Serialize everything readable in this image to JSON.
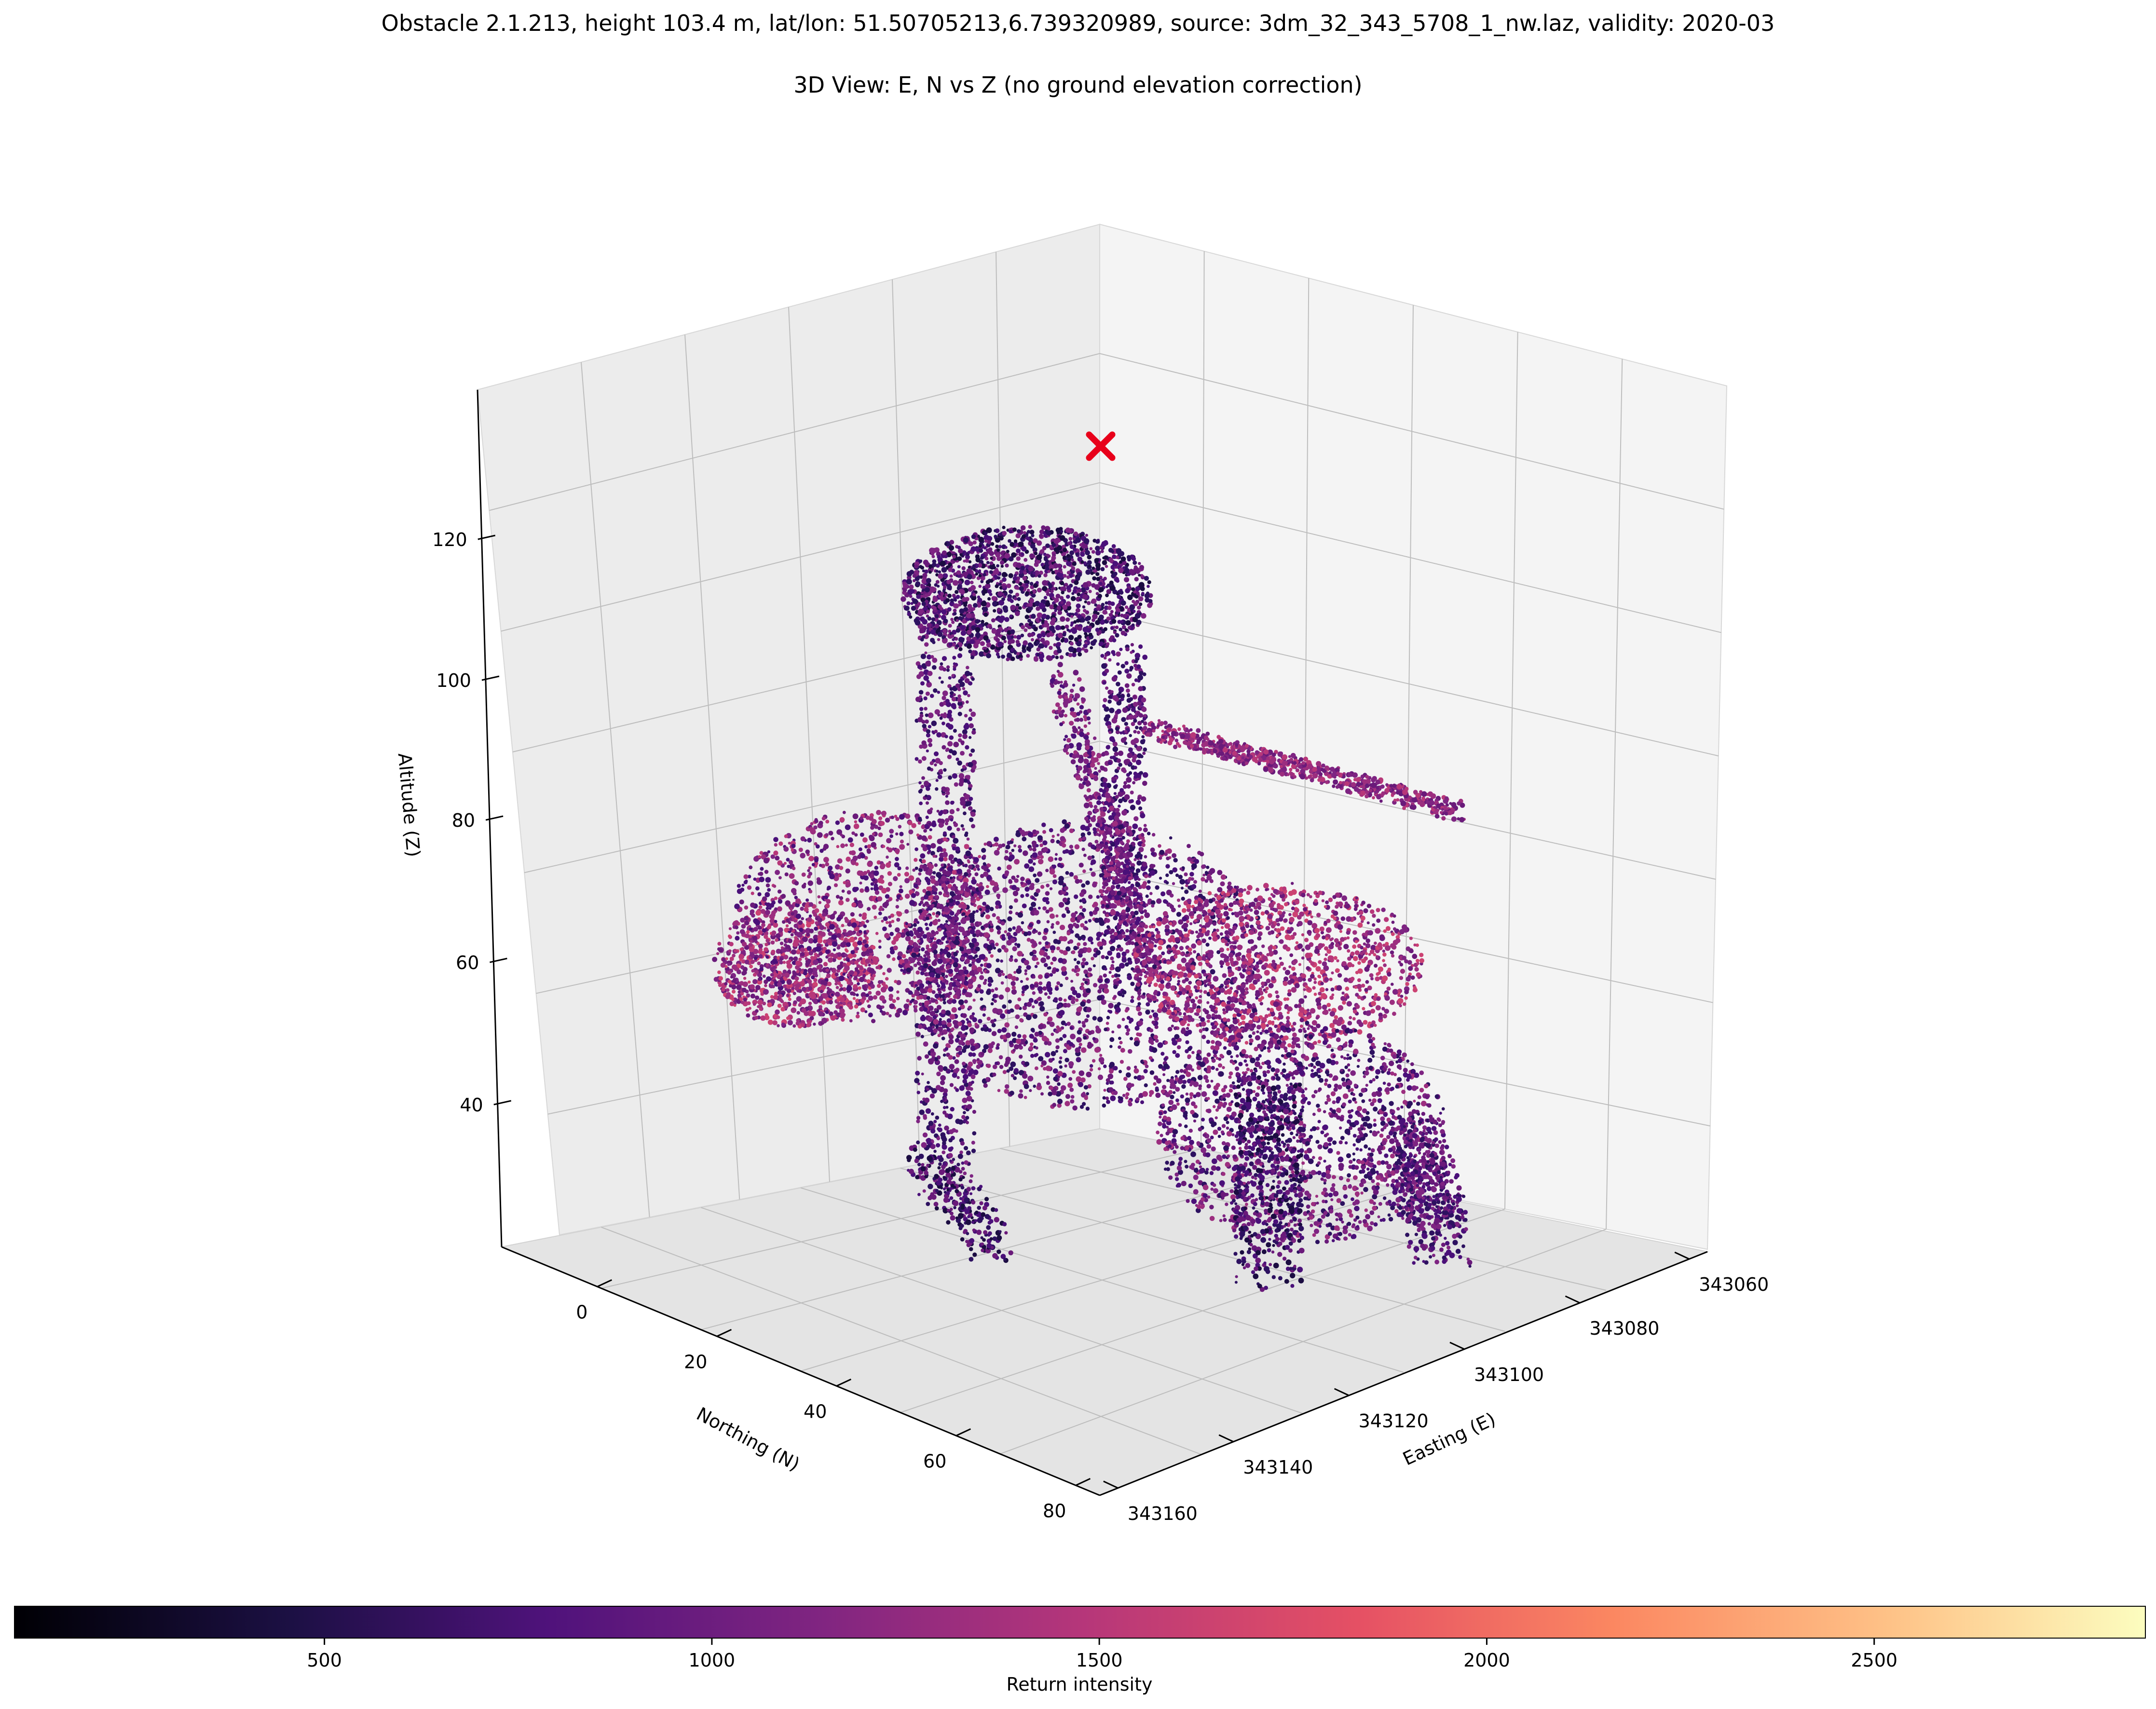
{
  "figure": {
    "title": "Obstacle 2.1.213, height 103.4 m, lat/lon: 51.50705213,6.739320989, source: 3dm_32_343_5708_1_nw.laz, validity: 2020-03",
    "subtitle": "3D View: E, N vs Z (no ground elevation correction)"
  },
  "chart_data": {
    "type": "scatter",
    "projection": "3d",
    "colormap": "magma",
    "grid": true,
    "axes": {
      "x": {
        "label": "Easting (E)",
        "ticks": [
          "343060",
          "343080",
          "343100",
          "343120",
          "343140",
          "343160"
        ]
      },
      "y": {
        "label": "Northing (N)",
        "ticks": [
          "0",
          "20",
          "40",
          "60",
          "80"
        ]
      },
      "z": {
        "label": "Altitude (Z)",
        "ticks": [
          "40",
          "60",
          "80",
          "100",
          "120"
        ]
      }
    },
    "colorbar": {
      "label": "Return intensity",
      "ticks": [
        "500",
        "1000",
        "1500",
        "2000",
        "2500"
      ],
      "range": [
        100,
        2850
      ]
    },
    "marker": {
      "shape": "x",
      "color": "#e8001a",
      "description": "obstacle top",
      "altitude_approx": 127
    },
    "colors": {
      "point_dark": "#1b0c41",
      "point_mid": "#6a1a7a",
      "point_light": "#b73779",
      "marker": "#e8001a"
    }
  }
}
